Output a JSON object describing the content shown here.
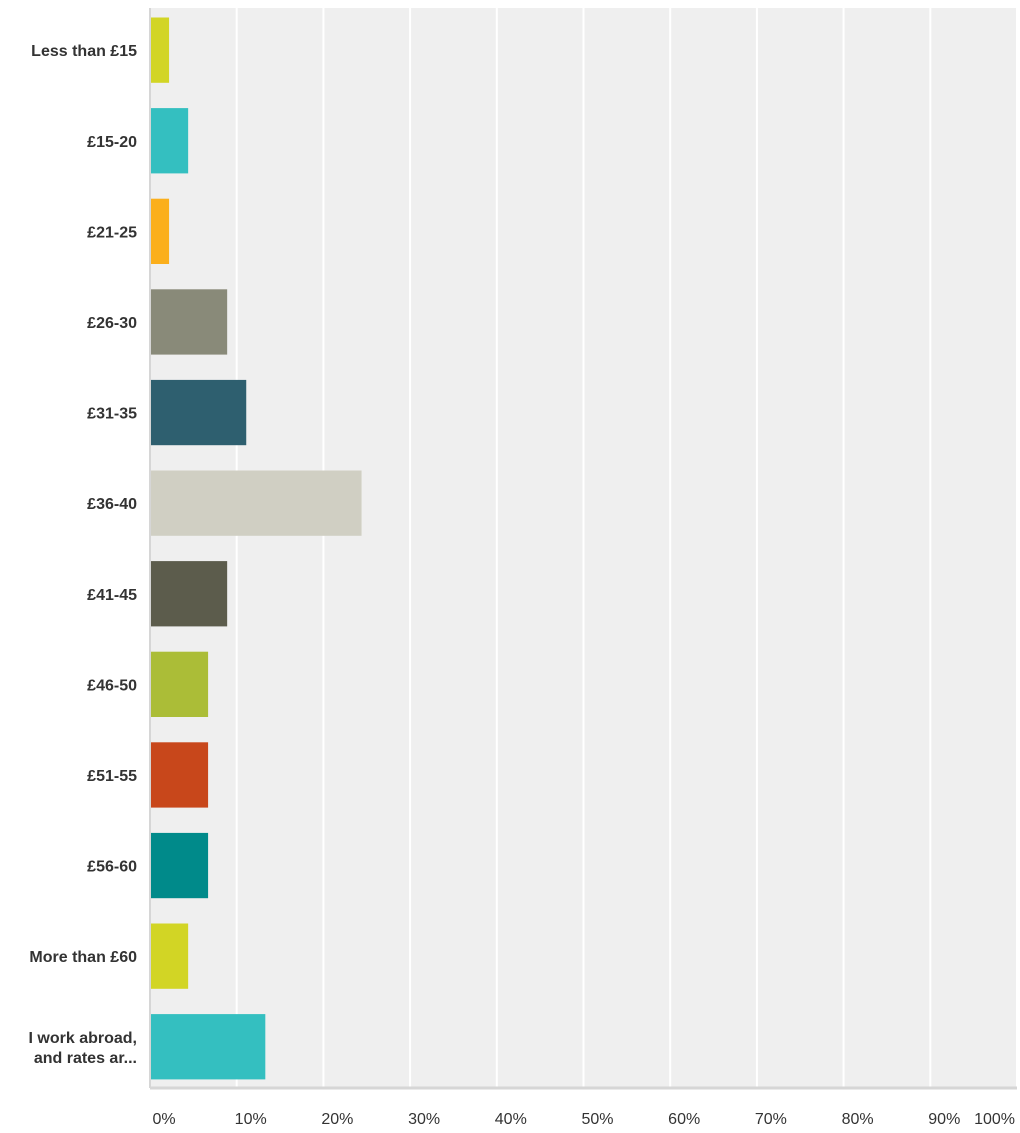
{
  "chart_data": {
    "type": "bar",
    "orientation": "horizontal",
    "title": "",
    "xlabel": "",
    "ylabel": "",
    "xlim": [
      0,
      100
    ],
    "x_unit": "%",
    "grid": true,
    "legend": "none",
    "categories": [
      [
        "Less than £15"
      ],
      [
        "£15-20"
      ],
      [
        "£21-25"
      ],
      [
        "£26-30"
      ],
      [
        "£31-35"
      ],
      [
        "£36-40"
      ],
      [
        "£41-45"
      ],
      [
        "£46-50"
      ],
      [
        "£51-55"
      ],
      [
        "£56-60"
      ],
      [
        "More than £60"
      ],
      [
        "I work abroad,",
        "and rates ar..."
      ]
    ],
    "values": [
      2.2,
      4.4,
      2.2,
      8.9,
      11.1,
      24.4,
      8.9,
      6.7,
      6.7,
      6.7,
      4.4,
      13.3
    ],
    "colors": [
      "#d2d525",
      "#34bfc0",
      "#fbaf1c",
      "#898a79",
      "#2e5f6f",
      "#d0cfc3",
      "#5c5c4c",
      "#abbd37",
      "#c8471b",
      "#008a8a",
      "#d2d525",
      "#34bfc0"
    ],
    "ticks": [
      "0%",
      "10%",
      "20%",
      "30%",
      "40%",
      "50%",
      "60%",
      "70%",
      "80%",
      "90%",
      "100%"
    ],
    "style": {
      "plot_background": "#efefef",
      "gridline_color": "#ffffff",
      "axis_color": "#d6d6d6",
      "text_color": "#333333"
    }
  }
}
